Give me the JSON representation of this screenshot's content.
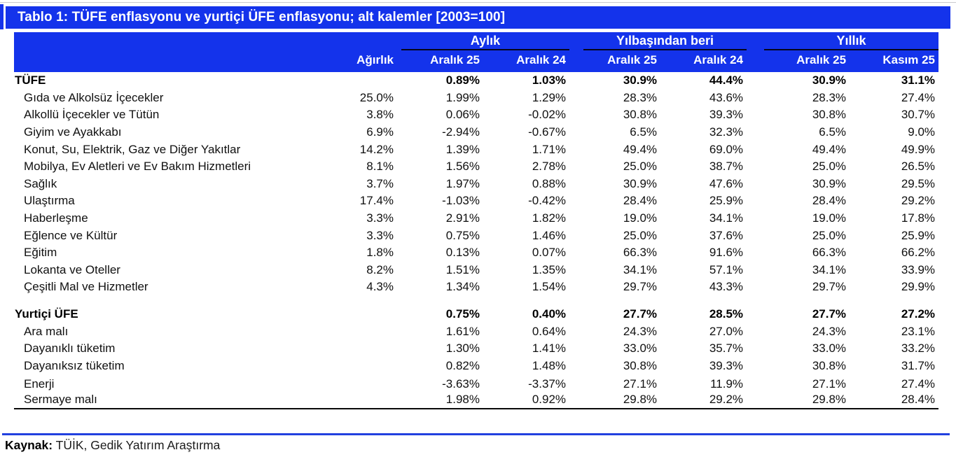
{
  "title": "Tablo 1: TÜFE enflasyonu ve yurtiçi ÜFE enflasyonu; alt kalemler [2003=100]",
  "header": {
    "groups": [
      {
        "label": "Aylık"
      },
      {
        "label": "Yılbaşından beri"
      },
      {
        "label": "Yıllık"
      }
    ],
    "columns": [
      "Ağırlık",
      "Aralık 25",
      "Aralık 24",
      "Aralık 25",
      "Aralık 24",
      "Aralık 25",
      "Kasım 25"
    ]
  },
  "table": {
    "rows": [
      {
        "label": "TÜFE",
        "bold": true,
        "weight": "",
        "values": [
          "0.89%",
          "1.03%",
          "30.9%",
          "44.4%",
          "30.9%",
          "31.1%"
        ]
      },
      {
        "label": "Gıda ve Alkolsüz İçecekler",
        "weight": "25.0%",
        "values": [
          "1.99%",
          "1.29%",
          "28.3%",
          "43.6%",
          "28.3%",
          "27.4%"
        ]
      },
      {
        "label": "Alkollü İçecekler ve Tütün",
        "weight": "3.8%",
        "values": [
          "0.06%",
          "-0.02%",
          "30.8%",
          "39.3%",
          "30.8%",
          "30.7%"
        ]
      },
      {
        "label": "Giyim ve Ayakkabı",
        "weight": "6.9%",
        "values": [
          "-2.94%",
          "-0.67%",
          "6.5%",
          "32.3%",
          "6.5%",
          "9.0%"
        ]
      },
      {
        "label": "Konut, Su, Elektrik, Gaz ve Diğer Yakıtlar",
        "weight": "14.2%",
        "values": [
          "1.39%",
          "1.71%",
          "49.4%",
          "69.0%",
          "49.4%",
          "49.9%"
        ]
      },
      {
        "label": "Mobilya, Ev Aletleri ve Ev Bakım Hizmetleri",
        "weight": "8.1%",
        "values": [
          "1.56%",
          "2.78%",
          "25.0%",
          "38.7%",
          "25.0%",
          "26.5%"
        ]
      },
      {
        "label": "Sağlık",
        "weight": "3.7%",
        "values": [
          "1.97%",
          "0.88%",
          "30.9%",
          "47.6%",
          "30.9%",
          "29.5%"
        ]
      },
      {
        "label": "Ulaştırma",
        "weight": "17.4%",
        "values": [
          "-1.03%",
          "-0.42%",
          "28.4%",
          "25.9%",
          "28.4%",
          "29.2%"
        ]
      },
      {
        "label": "Haberleşme",
        "weight": "3.3%",
        "values": [
          "2.91%",
          "1.82%",
          "19.0%",
          "34.1%",
          "19.0%",
          "17.8%"
        ]
      },
      {
        "label": "Eğlence ve Kültür",
        "weight": "3.3%",
        "values": [
          "0.75%",
          "1.46%",
          "25.0%",
          "37.6%",
          "25.0%",
          "25.9%"
        ]
      },
      {
        "label": "Eğitim",
        "weight": "1.8%",
        "values": [
          "0.13%",
          "0.07%",
          "66.3%",
          "91.6%",
          "66.3%",
          "66.2%"
        ]
      },
      {
        "label": "Lokanta ve Oteller",
        "weight": "8.2%",
        "values": [
          "1.51%",
          "1.35%",
          "34.1%",
          "57.1%",
          "34.1%",
          "33.9%"
        ]
      },
      {
        "label": "Çeşitli Mal ve Hizmetler",
        "weight": "4.3%",
        "values": [
          "1.34%",
          "1.54%",
          "29.7%",
          "43.3%",
          "29.7%",
          "29.9%"
        ]
      },
      {
        "spacer": true
      },
      {
        "label": "Yurtiçi ÜFE",
        "bold": true,
        "weight": "",
        "values": [
          "0.75%",
          "0.40%",
          "27.7%",
          "28.5%",
          "27.7%",
          "27.2%"
        ]
      },
      {
        "label": "Ara malı",
        "weight": "",
        "values": [
          "1.61%",
          "0.64%",
          "24.3%",
          "27.0%",
          "24.3%",
          "23.1%"
        ]
      },
      {
        "label": "Dayanıklı tüketim",
        "weight": "",
        "values": [
          "1.30%",
          "1.41%",
          "33.0%",
          "35.7%",
          "33.0%",
          "33.2%"
        ]
      },
      {
        "label": "Dayanıksız tüketim",
        "weight": "",
        "values": [
          "0.82%",
          "1.48%",
          "30.8%",
          "39.3%",
          "30.8%",
          "31.7%"
        ]
      },
      {
        "label": "Enerji",
        "weight": "",
        "extra_gap": true,
        "values": [
          "-3.63%",
          "-3.37%",
          "27.1%",
          "11.9%",
          "27.1%",
          "27.4%"
        ]
      },
      {
        "label": "Sermaye malı",
        "weight": "",
        "values": [
          "1.98%",
          "0.92%",
          "29.8%",
          "29.2%",
          "29.8%",
          "28.4%"
        ]
      }
    ]
  },
  "source": {
    "label": "Kaynak:",
    "text": " TÜİK, Gedik Yatırım Araştırma"
  },
  "colors": {
    "accent_blue": "#1433EB",
    "underline_dark": "#05051a",
    "divider_blue": "#2140DF"
  }
}
